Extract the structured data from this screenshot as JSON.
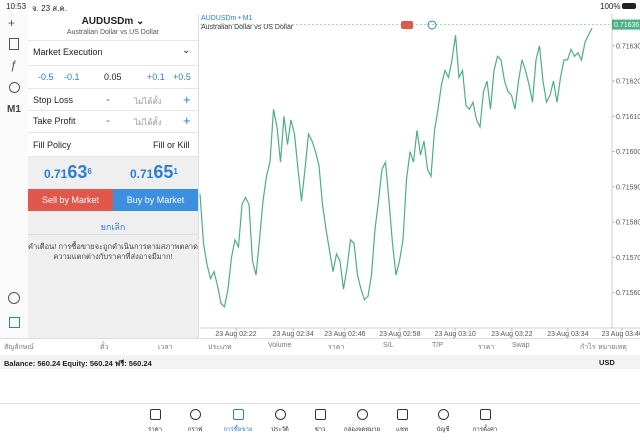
{
  "status_bar": {
    "time": "10:53",
    "date": "จ. 23 ส.ค.",
    "battery": "100%"
  },
  "sidebar": {
    "timeframe": "M1"
  },
  "order": {
    "symbol": "AUDUSDm",
    "description": "Australian Dollar vs US Dollar",
    "execution": "Market Execution",
    "volume_steps": [
      "-0.5",
      "-0.1",
      "+0.1",
      "+0.5"
    ],
    "volume": "0.05",
    "stop_loss": {
      "label": "Stop Loss",
      "minus": "-",
      "value": "ไม่ได้ตั้ง",
      "plus": "+"
    },
    "take_profit": {
      "label": "Take Profit",
      "minus": "-",
      "value": "ไม่ได้ตั้ง",
      "plus": "+"
    },
    "fill_policy": {
      "label": "Fill Policy",
      "value": "Fill or Kill"
    },
    "bid": {
      "prefix": "0.71",
      "big": "63",
      "small": "6"
    },
    "ask": {
      "prefix": "0.71",
      "big": "65",
      "small": "1"
    },
    "sell": "Sell by Market",
    "buy": "Buy by Market",
    "cancel": "ยกเลิก",
    "warning": [
      "คำเตือน! การซื้อขายจะถูกดำเนินการตามสภาพตลาด",
      "ความแตกต่างกับราคาที่ส่งอาจมีมาก!"
    ]
  },
  "chart_data": {
    "type": "line",
    "title": "AUDUSDm • M1",
    "subtitle": "Australian Dollar vs US Dollar",
    "color": "#4caf85",
    "values": [
      0.71588,
      0.71574,
      0.71568,
      0.71564,
      0.71566,
      0.71562,
      0.71557,
      0.71556,
      0.71561,
      0.7157,
      0.71575,
      0.71573,
      0.71585,
      0.71587,
      0.71585,
      0.71569,
      0.71565,
      0.71575,
      0.71586,
      0.71593,
      0.71597,
      0.71612,
      0.71607,
      0.71597,
      0.7161,
      0.71602,
      0.71609,
      0.71605,
      0.71595,
      0.71586,
      0.71595,
      0.71605,
      0.71603,
      0.716,
      0.71596,
      0.71585,
      0.71578,
      0.71572,
      0.71566,
      0.71571,
      0.71569,
      0.71561,
      0.71567,
      0.71575,
      0.71574,
      0.71565,
      0.71561,
      0.71558,
      0.71559,
      0.71565,
      0.71578,
      0.71586,
      0.71595,
      0.71597,
      0.71586,
      0.71574,
      0.71565,
      0.71569,
      0.71575,
      0.71592,
      0.716,
      0.71597,
      0.71606,
      0.71599,
      0.71603,
      0.71595,
      0.71593,
      0.71606,
      0.71612,
      0.71619,
      0.71623,
      0.71621,
      0.71626,
      0.71633,
      0.71621,
      0.71623,
      0.71613,
      0.71612,
      0.71614,
      0.71609,
      0.71607,
      0.71617,
      0.7162,
      0.71612,
      0.71623,
      0.71627,
      0.71626,
      0.7162,
      0.71617,
      0.71616,
      0.71612,
      0.7162,
      0.71626,
      0.71623,
      0.71619,
      0.71614,
      0.71626,
      0.7163,
      0.7162,
      0.71614,
      0.71616,
      0.7162,
      0.71614,
      0.71621,
      0.71626,
      0.71626,
      0.71629,
      0.71627,
      0.71628,
      0.71626,
      0.71631,
      0.71633,
      0.71635
    ],
    "current_price": 0.71636,
    "ylim": [
      0.7155,
      0.71639
    ],
    "yticks": [
      {
        "value": 0.7156,
        "label": "0.71560"
      },
      {
        "value": 0.7157,
        "label": "0.71570"
      },
      {
        "value": 0.7158,
        "label": "0.71580"
      },
      {
        "value": 0.7159,
        "label": "0.71590"
      },
      {
        "value": 0.716,
        "label": "0.71600"
      },
      {
        "value": 0.7161,
        "label": "0.71610"
      },
      {
        "value": 0.7162,
        "label": "0.71620"
      },
      {
        "value": 0.7163,
        "label": "0.71630"
      }
    ],
    "xlim": [
      0,
      124
    ],
    "xticks": [
      {
        "value": 10.3,
        "label": "23 Aug 02:22"
      },
      {
        "value": 26.6,
        "label": "23 Aug 02:34"
      },
      {
        "value": 41.4,
        "label": "23 Aug 02:46"
      },
      {
        "value": 57.1,
        "label": "23 Aug 02:58"
      },
      {
        "value": 72.9,
        "label": "23 Aug 03:10"
      },
      {
        "value": 89.1,
        "label": "23 Aug 03:22"
      },
      {
        "value": 105.1,
        "label": "23 Aug 03:34"
      },
      {
        "value": 120.6,
        "label": "23 Aug 03:46"
      }
    ]
  },
  "positions": {
    "columns": [
      "สัญลักษณ์",
      "ตั๋ว",
      "เวลา",
      "ประเภท",
      "Volume",
      "ราคา",
      "S/L",
      "T/P",
      "ราคา",
      "Swap",
      "กำไร"
    ],
    "notes": "หมายเหตุ",
    "balance": "Balance: 560.24 Equity: 560.24 ฟรี: 560.24",
    "currency": "USD"
  },
  "tabs": [
    "ราคา",
    "กราฟ",
    "การซื้อขาย",
    "ประวัติ",
    "ข่าว",
    "กล่องจดหมาย",
    "แชท",
    "บัญชี",
    "การตั้งค่า"
  ]
}
